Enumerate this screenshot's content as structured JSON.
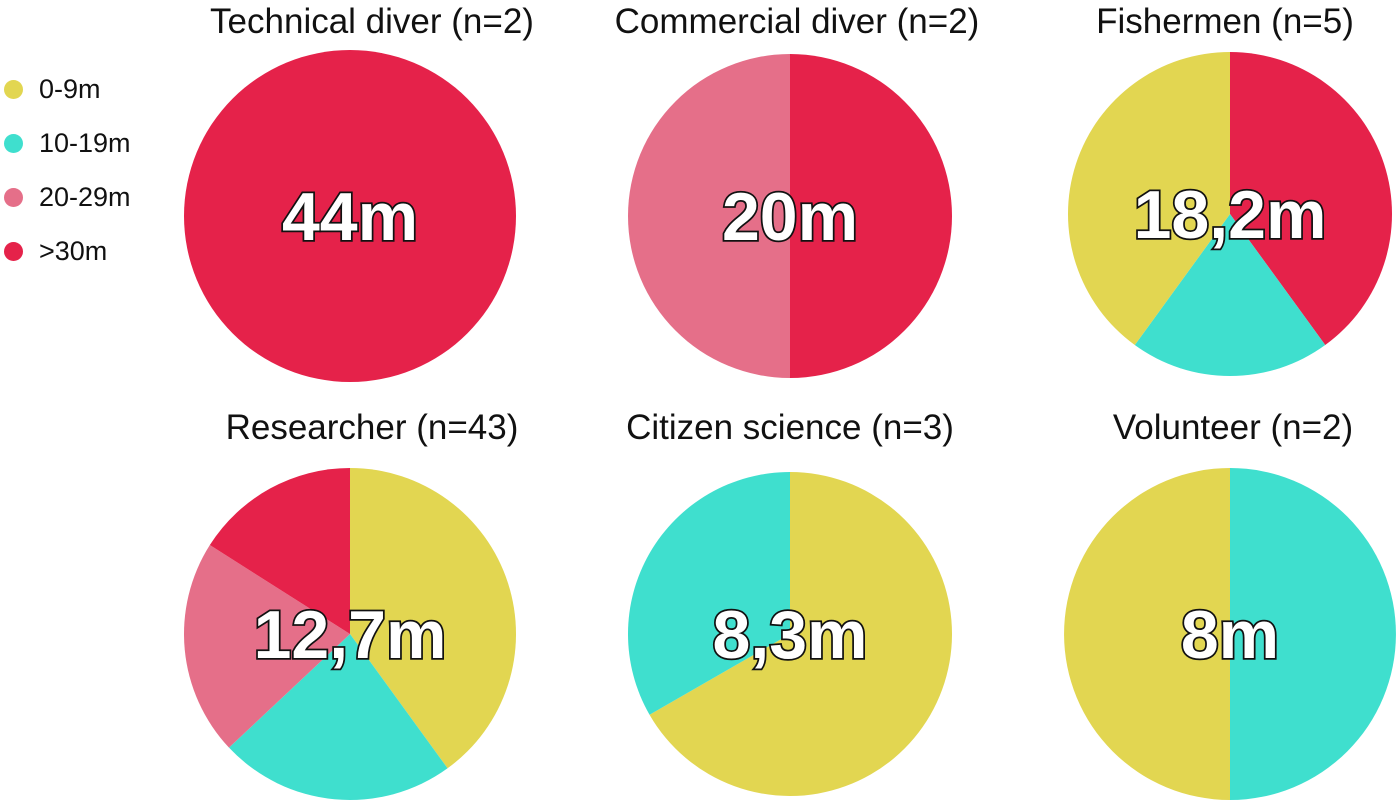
{
  "colors": {
    "0-9m": "#E2D651",
    "10-19m": "#3FDFCE",
    "20-29m": "#E56F89",
    ">30m": "#E5224A"
  },
  "legend": [
    {
      "label": "0-9m",
      "color": "#E2D651"
    },
    {
      "label": "10-19m",
      "color": "#3FDFCE"
    },
    {
      "label": "20-29m",
      "color": "#E56F89"
    },
    {
      "label": ">30m",
      "color": "#E5224A"
    }
  ],
  "chart_data": [
    {
      "type": "pie",
      "title": "Technical diver (n=2)",
      "center_label": "44m",
      "slices": [
        {
          "category": ">30m",
          "value": 1.0
        }
      ]
    },
    {
      "type": "pie",
      "title": "Commercial diver (n=2)",
      "center_label": "20m",
      "slices": [
        {
          "category": ">30m",
          "value": 0.5
        },
        {
          "category": "20-29m",
          "value": 0.5
        }
      ]
    },
    {
      "type": "pie",
      "title": "Fishermen (n=5)",
      "center_label": "18,2m",
      "slices": [
        {
          "category": ">30m",
          "value": 0.4
        },
        {
          "category": "10-19m",
          "value": 0.2
        },
        {
          "category": "0-9m",
          "value": 0.4
        }
      ]
    },
    {
      "type": "pie",
      "title": "Researcher (n=43)",
      "center_label": "12,7m",
      "slices": [
        {
          "category": "0-9m",
          "value": 0.4
        },
        {
          "category": "10-19m",
          "value": 0.23
        },
        {
          "category": "20-29m",
          "value": 0.21
        },
        {
          "category": ">30m",
          "value": 0.16
        }
      ]
    },
    {
      "type": "pie",
      "title": "Citizen science (n=3)",
      "center_label": "8,3m",
      "slices": [
        {
          "category": "0-9m",
          "value": 0.667
        },
        {
          "category": "10-19m",
          "value": 0.333
        }
      ]
    },
    {
      "type": "pie",
      "title": "Volunteer (n=2)",
      "center_label": "8m",
      "slices": [
        {
          "category": "10-19m",
          "value": 0.5
        },
        {
          "category": "0-9m",
          "value": 0.5
        }
      ]
    }
  ]
}
